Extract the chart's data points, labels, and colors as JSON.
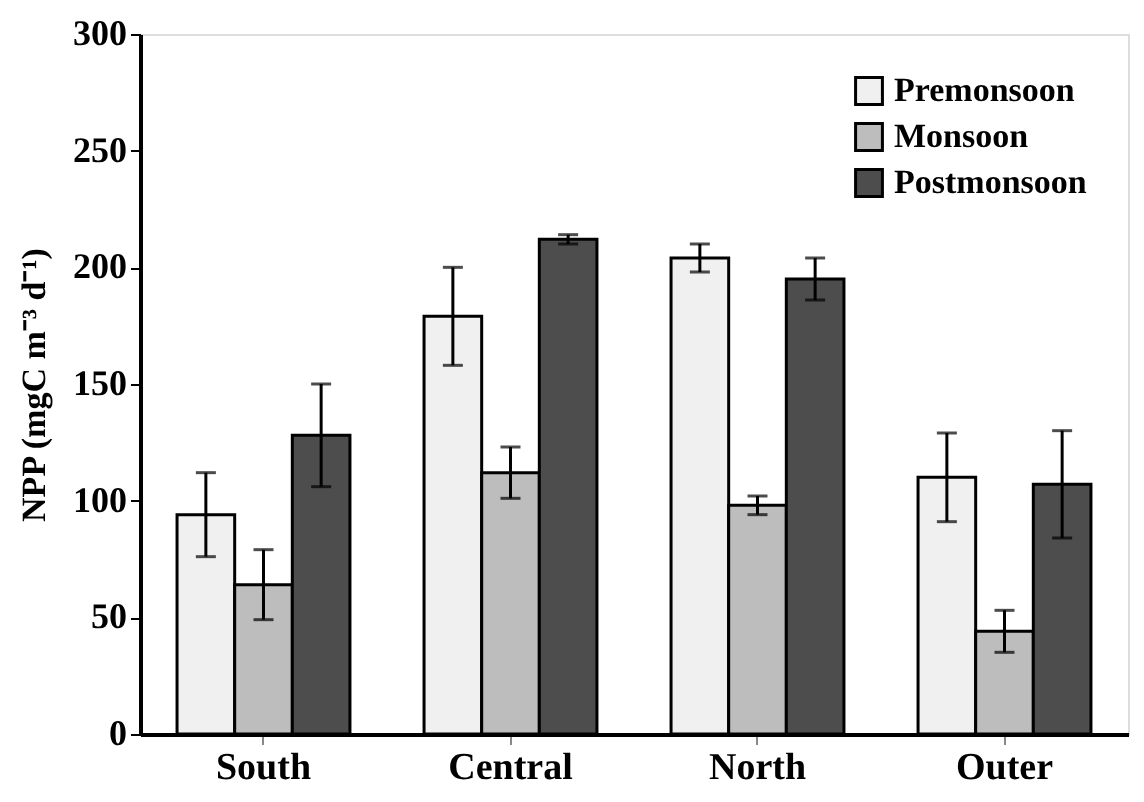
{
  "chart_data": {
    "type": "bar",
    "ylabel": "NPP (mgC m⁻³ d⁻¹)",
    "categories": [
      "South",
      "Central",
      "North",
      "Outer"
    ],
    "series": [
      {
        "name": "Premonsoon",
        "color": "#f0f0f0",
        "values": [
          94,
          179,
          204,
          110
        ],
        "errors": [
          18,
          21,
          6,
          19
        ]
      },
      {
        "name": "Monsoon",
        "color": "#bdbdbd",
        "values": [
          64,
          112,
          98,
          44
        ],
        "errors": [
          15,
          11,
          4,
          9
        ]
      },
      {
        "name": "Postmonsoon",
        "color": "#4d4d4d",
        "values": [
          128,
          212,
          195,
          107
        ],
        "errors": [
          22,
          2,
          9,
          23
        ]
      }
    ],
    "ylim": [
      0,
      300
    ],
    "yticks": [
      0,
      50,
      100,
      150,
      200,
      250,
      300
    ],
    "grid": false,
    "legend": "top right"
  }
}
